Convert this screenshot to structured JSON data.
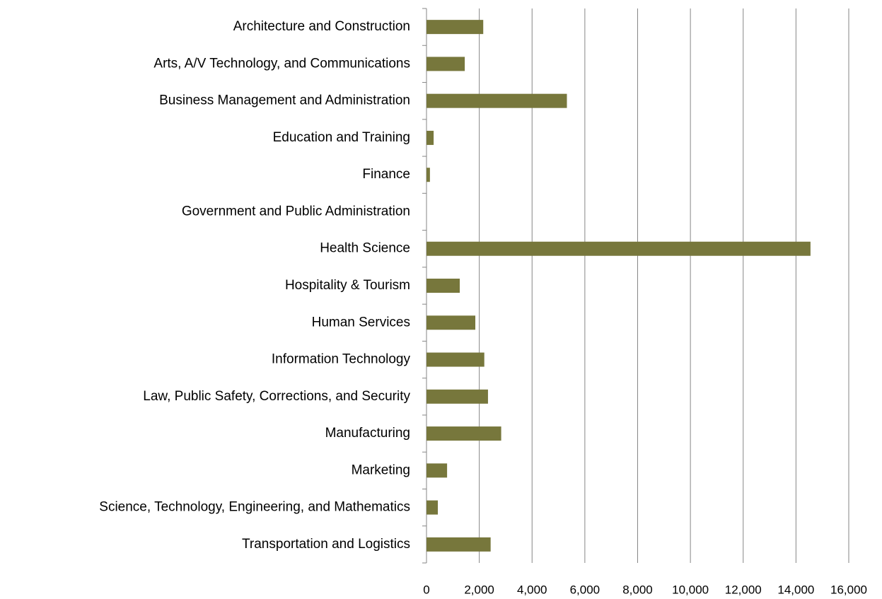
{
  "chart_data": {
    "type": "barh",
    "categories": [
      "Architecture and Construction",
      "Arts, A/V Technology, and Communications",
      "Business Management and Administration",
      "Education and Training",
      "Finance",
      "Government and Public Administration",
      "Health Science",
      "Hospitality & Tourism",
      "Human Services",
      "Information Technology",
      "Law, Public Safety, Corrections, and Security",
      "Manufacturing",
      "Marketing",
      "Science, Technology, Engineering, and Mathematics",
      "Transportation and Logistics"
    ],
    "values": [
      2150,
      1450,
      5320,
      270,
      130,
      0,
      14550,
      1260,
      1850,
      2190,
      2330,
      2830,
      780,
      430,
      2430
    ],
    "color": "#77773c",
    "xlim": [
      0,
      16000
    ],
    "xticks": [
      0,
      {
        "value": 2000,
        "label": "2,000"
      },
      {
        "value": 4000,
        "label": "4,000"
      },
      {
        "value": 6000,
        "label": "6,000"
      },
      {
        "value": 8000,
        "label": "8,000"
      },
      {
        "value": 10000,
        "label": "10,000"
      },
      {
        "value": 12000,
        "label": "12,000"
      },
      {
        "value": 14000,
        "label": "14,000"
      },
      {
        "value": 16000,
        "label": "16,000"
      }
    ],
    "grid": true
  }
}
